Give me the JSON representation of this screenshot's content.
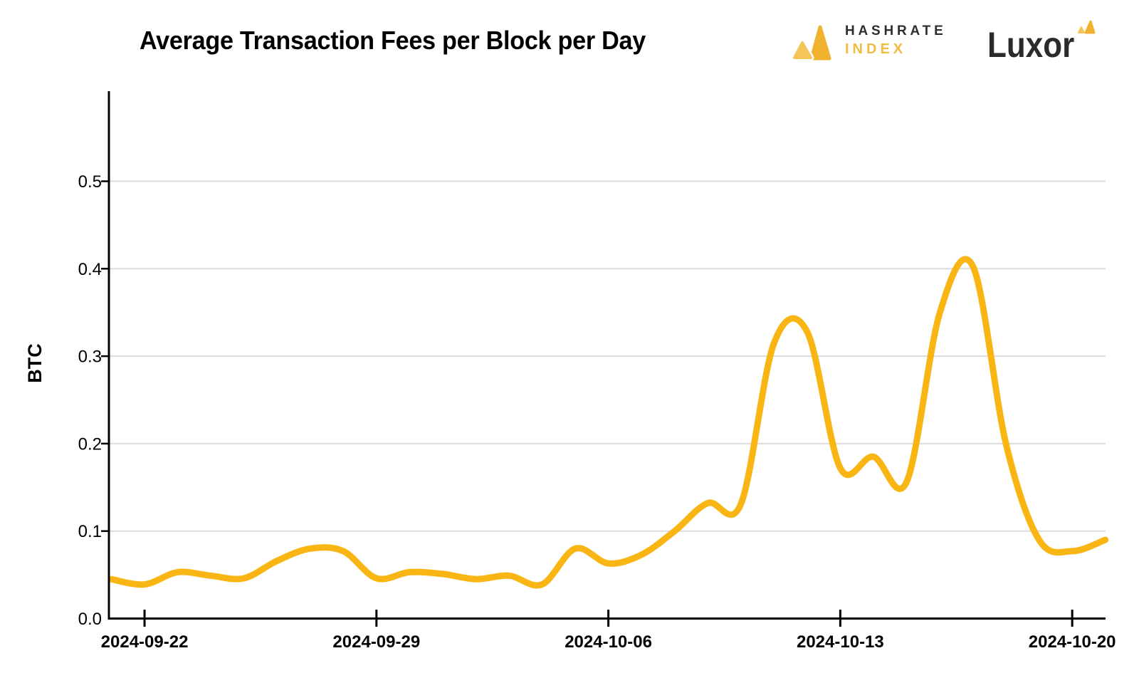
{
  "header": {
    "title": "Average Transaction Fees per Block per Day",
    "hashrate_logo": {
      "line1": "HASHRATE",
      "line2": "INDEX"
    },
    "luxor_logo": {
      "text": "Luxor"
    }
  },
  "chart_data": {
    "type": "line",
    "title": "Average Transaction Fees per Block per Day",
    "xlabel": "",
    "ylabel": "BTC",
    "series_name": "Average transaction fees per block per day (BTC)",
    "x": [
      "2024-09-21",
      "2024-09-22",
      "2024-09-23",
      "2024-09-24",
      "2024-09-25",
      "2024-09-26",
      "2024-09-27",
      "2024-09-28",
      "2024-09-29",
      "2024-09-30",
      "2024-10-01",
      "2024-10-02",
      "2024-10-03",
      "2024-10-04",
      "2024-10-05",
      "2024-10-06",
      "2024-10-07",
      "2024-10-08",
      "2024-10-09",
      "2024-10-10",
      "2024-10-11",
      "2024-10-12",
      "2024-10-13",
      "2024-10-14",
      "2024-10-15",
      "2024-10-16",
      "2024-10-17",
      "2024-10-18",
      "2024-10-19",
      "2024-10-20",
      "2024-10-21"
    ],
    "values": [
      0.045,
      0.039,
      0.053,
      0.049,
      0.046,
      0.066,
      0.08,
      0.077,
      0.046,
      0.053,
      0.051,
      0.045,
      0.049,
      0.039,
      0.08,
      0.063,
      0.073,
      0.1,
      0.132,
      0.131,
      0.315,
      0.328,
      0.172,
      0.185,
      0.156,
      0.349,
      0.403,
      0.2,
      0.09,
      0.077,
      0.09
    ],
    "xtick_labels": [
      "2024-09-22",
      "2024-09-29",
      "2024-10-06",
      "2024-10-13",
      "2024-10-20"
    ],
    "ytick_labels": [
      "0.0",
      "0.1",
      "0.2",
      "0.3",
      "0.4",
      "0.5"
    ],
    "ytick_values": [
      0.0,
      0.1,
      0.2,
      0.3,
      0.4,
      0.5
    ],
    "ylim": [
      0,
      0.6
    ],
    "grid": "horizontal",
    "legend": "none",
    "smoothing": "spline",
    "colors": {
      "line": "#F9B513",
      "axis": "#000000",
      "grid": "#DCDCDC",
      "logo_gold": "#F1B32F",
      "logo_gold_light": "#F5C55A",
      "logo_text_dark": "#2E2E2E",
      "logo_index_gold": "#F2BC43"
    }
  }
}
